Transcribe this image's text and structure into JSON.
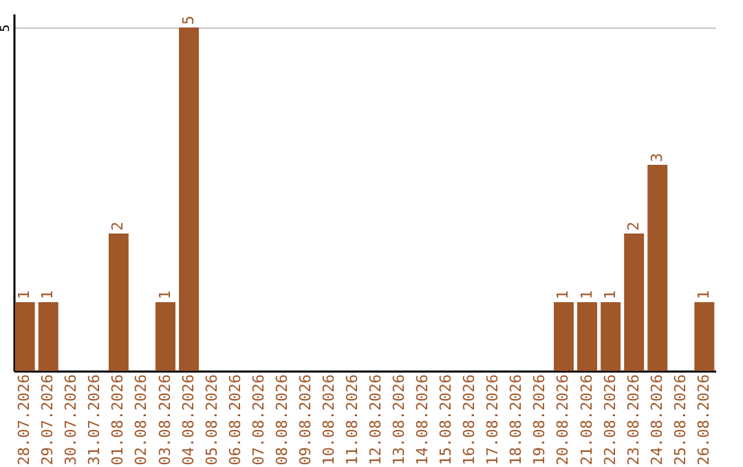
{
  "chart_data": {
    "type": "bar",
    "categories": [
      "28.07.2026",
      "29.07.2026",
      "30.07.2026",
      "31.07.2026",
      "01.08.2026",
      "02.08.2026",
      "03.08.2026",
      "04.08.2026",
      "05.08.2026",
      "06.08.2026",
      "07.08.2026",
      "08.08.2026",
      "09.08.2026",
      "10.08.2026",
      "11.08.2026",
      "12.08.2026",
      "13.08.2026",
      "14.08.2026",
      "15.08.2026",
      "16.08.2026",
      "17.08.2026",
      "18.08.2026",
      "19.08.2026",
      "20.08.2026",
      "21.08.2026",
      "22.08.2026",
      "23.08.2026",
      "24.08.2026",
      "25.08.2026",
      "26.08.2026"
    ],
    "values": [
      1,
      1,
      0,
      0,
      2,
      0,
      1,
      5,
      0,
      0,
      0,
      0,
      0,
      0,
      0,
      0,
      0,
      0,
      0,
      0,
      0,
      0,
      0,
      1,
      1,
      1,
      2,
      3,
      0,
      1
    ],
    "value_labels": [
      "1",
      "1",
      null,
      null,
      "2",
      null,
      "1",
      "5",
      null,
      null,
      null,
      null,
      null,
      null,
      null,
      null,
      null,
      null,
      null,
      null,
      null,
      null,
      null,
      "1",
      "1",
      "1",
      "2",
      "3",
      null,
      "1"
    ],
    "color": "#a0572a",
    "ylim": [
      0,
      5.2
    ],
    "yticks": [
      5
    ],
    "grid": "y"
  }
}
